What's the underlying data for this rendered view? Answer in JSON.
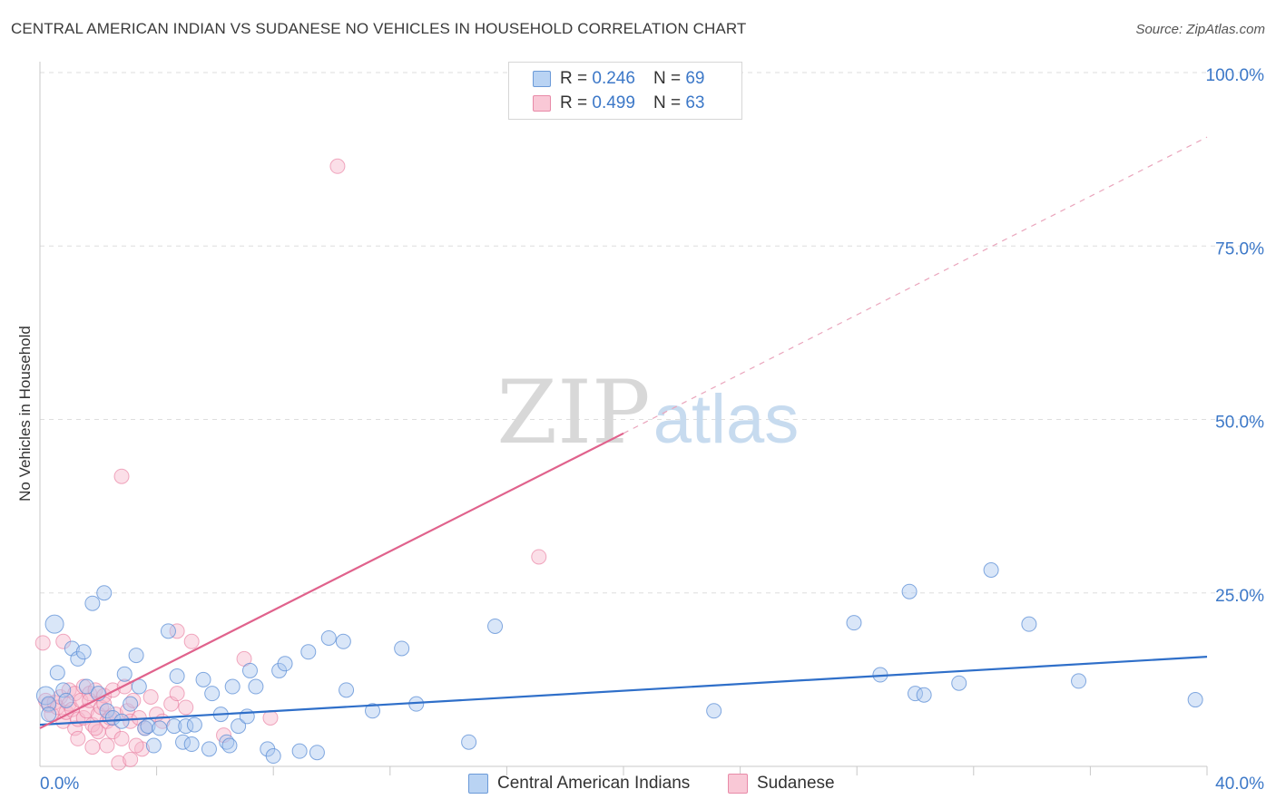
{
  "title": "CENTRAL AMERICAN INDIAN VS SUDANESE NO VEHICLES IN HOUSEHOLD CORRELATION CHART",
  "source": "Source: ZipAtlas.com",
  "watermark": {
    "zip": "ZIP",
    "atlas": "atlas"
  },
  "legend": {
    "r_label": "R =",
    "n_label": "N =",
    "series": [
      {
        "r": "0.246",
        "n": "69"
      },
      {
        "r": "0.499",
        "n": "63"
      }
    ]
  },
  "chart_data": {
    "type": "scatter",
    "title": "CENTRAL AMERICAN INDIAN VS SUDANESE NO VEHICLES IN HOUSEHOLD CORRELATION CHART",
    "xlabel": "",
    "ylabel": "No Vehicles in Household",
    "xlim": [
      0,
      40
    ],
    "ylim": [
      0,
      100
    ],
    "x_tick_labels": [
      "0.0%",
      "40.0%"
    ],
    "y_ticks": [
      25,
      50,
      75,
      100
    ],
    "y_tick_labels": [
      "25.0%",
      "50.0%",
      "75.0%",
      "100.0%"
    ],
    "grid": true,
    "colors": {
      "blue": "#5b8ed6",
      "blue_fill": "#aac8f0",
      "pink": "#e8749a",
      "pink_fill": "#f6b8cb",
      "axis_text": "#3c78c8"
    },
    "series": [
      {
        "name": "Central American Indians",
        "color": "#4f86d0",
        "r": 0.246,
        "n": 69,
        "trend": {
          "x": [
            0,
            40
          ],
          "y": [
            6.0,
            15.8
          ],
          "dashed_extension": false
        },
        "points": [
          [
            0.2,
            10.2
          ],
          [
            0.3,
            9.0
          ],
          [
            0.3,
            7.5
          ],
          [
            0.5,
            20.5
          ],
          [
            0.6,
            13.5
          ],
          [
            0.8,
            11.0
          ],
          [
            0.9,
            9.5
          ],
          [
            1.1,
            17.0
          ],
          [
            1.3,
            15.5
          ],
          [
            1.5,
            16.5
          ],
          [
            1.6,
            11.5
          ],
          [
            1.8,
            23.5
          ],
          [
            2.0,
            10.5
          ],
          [
            2.2,
            25.0
          ],
          [
            2.3,
            8.0
          ],
          [
            2.5,
            7.0
          ],
          [
            2.8,
            6.5
          ],
          [
            2.9,
            13.3
          ],
          [
            3.1,
            9.0
          ],
          [
            3.3,
            16.0
          ],
          [
            3.4,
            11.5
          ],
          [
            3.6,
            5.5
          ],
          [
            3.7,
            5.8
          ],
          [
            3.9,
            3.0
          ],
          [
            4.1,
            5.5
          ],
          [
            4.4,
            19.5
          ],
          [
            4.6,
            5.8
          ],
          [
            4.7,
            13.0
          ],
          [
            4.9,
            3.5
          ],
          [
            5.0,
            5.8
          ],
          [
            5.2,
            3.2
          ],
          [
            5.3,
            6.0
          ],
          [
            5.6,
            12.5
          ],
          [
            5.8,
            2.5
          ],
          [
            5.9,
            10.5
          ],
          [
            6.2,
            7.5
          ],
          [
            6.4,
            3.5
          ],
          [
            6.5,
            3.0
          ],
          [
            6.6,
            11.5
          ],
          [
            6.8,
            5.8
          ],
          [
            7.1,
            7.2
          ],
          [
            7.2,
            13.8
          ],
          [
            7.4,
            11.5
          ],
          [
            7.8,
            2.5
          ],
          [
            8.0,
            1.5
          ],
          [
            8.2,
            13.8
          ],
          [
            8.4,
            14.8
          ],
          [
            8.9,
            2.2
          ],
          [
            9.2,
            16.5
          ],
          [
            9.5,
            2.0
          ],
          [
            9.9,
            18.5
          ],
          [
            10.4,
            18.0
          ],
          [
            10.5,
            11.0
          ],
          [
            11.4,
            8.0
          ],
          [
            12.4,
            17.0
          ],
          [
            12.9,
            9.0
          ],
          [
            14.7,
            3.5
          ],
          [
            15.6,
            20.2
          ],
          [
            23.1,
            8.0
          ],
          [
            27.9,
            20.7
          ],
          [
            28.8,
            13.2
          ],
          [
            29.8,
            25.2
          ],
          [
            30.0,
            10.5
          ],
          [
            30.3,
            10.3
          ],
          [
            31.5,
            12.0
          ],
          [
            32.6,
            28.3
          ],
          [
            33.9,
            20.5
          ],
          [
            35.6,
            12.3
          ],
          [
            39.6,
            9.6
          ]
        ]
      },
      {
        "name": "Sudanese",
        "color": "#e8749a",
        "r": 0.499,
        "n": 63,
        "trend": {
          "x": [
            0,
            20
          ],
          "y": [
            5.5,
            48.0
          ],
          "dashed_extension": {
            "x": [
              20,
              40
            ],
            "y": [
              48.0,
              90.7
            ]
          }
        },
        "points": [
          [
            0.1,
            17.8
          ],
          [
            0.2,
            9.5
          ],
          [
            0.3,
            8.8
          ],
          [
            0.4,
            7.5
          ],
          [
            0.5,
            9.2
          ],
          [
            0.6,
            8.5
          ],
          [
            0.7,
            10.0
          ],
          [
            0.8,
            18.0
          ],
          [
            0.8,
            6.5
          ],
          [
            0.9,
            7.8
          ],
          [
            1.0,
            9.0
          ],
          [
            1.0,
            11.0
          ],
          [
            1.1,
            8.2
          ],
          [
            1.2,
            10.5
          ],
          [
            1.2,
            5.5
          ],
          [
            1.3,
            4.0
          ],
          [
            1.3,
            6.8
          ],
          [
            1.4,
            9.5
          ],
          [
            1.5,
            7.0
          ],
          [
            1.5,
            11.5
          ],
          [
            1.6,
            8.0
          ],
          [
            1.7,
            10.5
          ],
          [
            1.7,
            9.5
          ],
          [
            1.8,
            6.0
          ],
          [
            1.8,
            2.8
          ],
          [
            1.9,
            11.0
          ],
          [
            2.0,
            7.5
          ],
          [
            2.0,
            5.0
          ],
          [
            2.1,
            8.5
          ],
          [
            2.2,
            10.2
          ],
          [
            2.2,
            9.0
          ],
          [
            2.3,
            3.0
          ],
          [
            2.3,
            6.5
          ],
          [
            2.4,
            7.0
          ],
          [
            2.5,
            11.0
          ],
          [
            2.5,
            5.0
          ],
          [
            2.6,
            7.5
          ],
          [
            2.7,
            0.5
          ],
          [
            2.8,
            4.0
          ],
          [
            2.8,
            41.8
          ],
          [
            2.9,
            11.5
          ],
          [
            3.0,
            8.0
          ],
          [
            3.1,
            6.5
          ],
          [
            3.1,
            1.0
          ],
          [
            3.2,
            9.5
          ],
          [
            3.4,
            7.0
          ],
          [
            3.5,
            2.5
          ],
          [
            3.6,
            5.5
          ],
          [
            3.8,
            10.0
          ],
          [
            4.0,
            7.5
          ],
          [
            4.2,
            6.5
          ],
          [
            4.5,
            9.0
          ],
          [
            4.7,
            10.5
          ],
          [
            4.7,
            19.5
          ],
          [
            5.0,
            8.5
          ],
          [
            5.2,
            18.0
          ],
          [
            6.3,
            4.5
          ],
          [
            7.0,
            15.5
          ],
          [
            7.9,
            7.0
          ],
          [
            10.2,
            86.5
          ],
          [
            17.1,
            30.2
          ],
          [
            3.3,
            3.0
          ],
          [
            1.9,
            5.5
          ]
        ]
      }
    ]
  },
  "bottom_legend": [
    "Central American Indians",
    "Sudanese"
  ]
}
